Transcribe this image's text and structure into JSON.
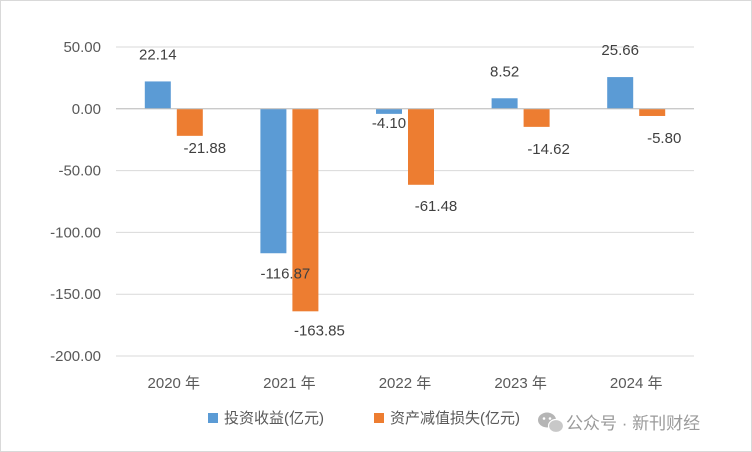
{
  "chart_data": {
    "type": "bar",
    "categories": [
      "2020 年",
      "2021 年",
      "2022 年",
      "2023 年",
      "2024 年"
    ],
    "series": [
      {
        "name": "投资收益(亿元)",
        "color": "#5b9bd5",
        "values": [
          22.14,
          -116.87,
          -4.1,
          8.52,
          25.66
        ]
      },
      {
        "name": "资产减值损失(亿元)",
        "color": "#ed7d31",
        "values": [
          -21.88,
          -163.85,
          -61.48,
          -14.62,
          -5.8
        ]
      }
    ],
    "data_labels": [
      [
        "22.14",
        "-116.87",
        "-4.10",
        "8.52",
        "25.66"
      ],
      [
        "-21.88",
        "-163.85",
        "-61.48",
        "-14.62",
        "-5.80"
      ]
    ],
    "y_ticks": [
      "50.00",
      "0.00",
      "-50.00",
      "-100.00",
      "-150.00",
      "-200.00"
    ],
    "ylim": [
      -200,
      50
    ],
    "grid": true,
    "legend_position": "bottom",
    "title": "",
    "xlabel": "",
    "ylabel": ""
  },
  "watermark": {
    "text": "公众号 · 新刊财经",
    "icon": "wechat-icon"
  }
}
